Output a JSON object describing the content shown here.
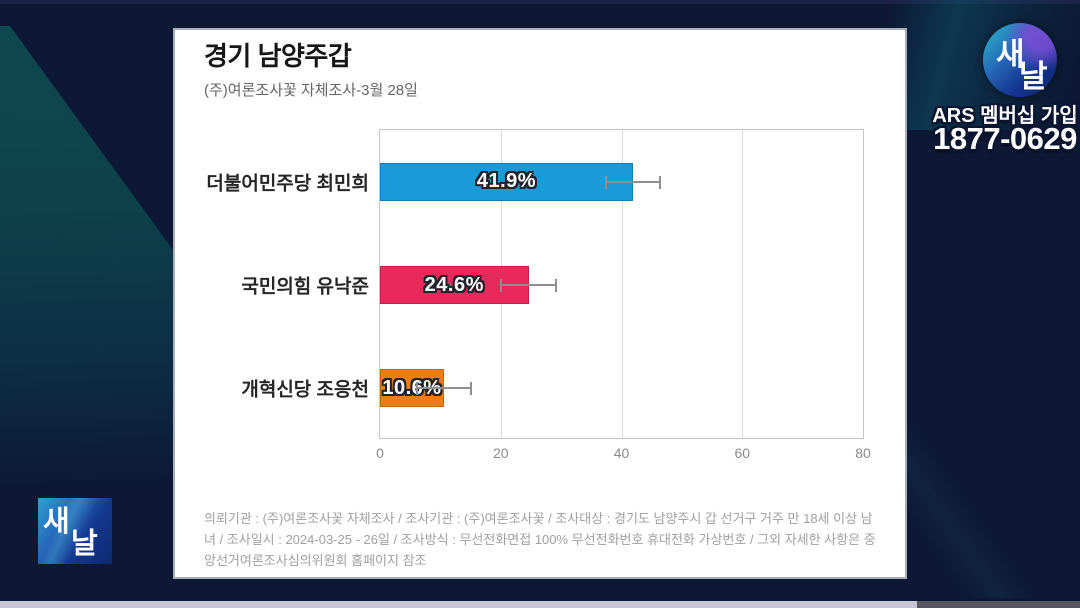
{
  "colors": {
    "background_navy": "#0c1834",
    "background_teal": "#0d434c",
    "card_background": "#ffffff",
    "bar_blue": "#1b9ad8",
    "bar_pink": "#e82a5b",
    "bar_orange": "#ee7d14",
    "progress_played": "#c6c7d2",
    "progress_remaining": "#55565e"
  },
  "chart_data": {
    "type": "bar",
    "orientation": "horizontal",
    "title": "경기 남양주갑",
    "subtitle": "(주)여론조사꽃 자체조사-3월 28일",
    "categories": [
      "더불어민주당 최민희",
      "국민의힘 유낙준",
      "개혁신당 조응천"
    ],
    "values": [
      41.9,
      24.6,
      10.6
    ],
    "value_labels": [
      "41.9%",
      "24.6%",
      "10.6%"
    ],
    "error_margin_pp": 4.7,
    "bar_colors": [
      "#1b9ad8",
      "#e82a5b",
      "#ee7d14"
    ],
    "xlim": [
      0,
      80
    ],
    "x_ticks": [
      0,
      20,
      40,
      60,
      80
    ],
    "grid": "vertical-only",
    "legend": "none"
  },
  "card": {
    "footnote": "의뢰기관 : (주)여론조사꽃 자체조사 / 조사기관 : (주)여론조사꽃 / 조사대상 : 경기도 남양주시 갑 선거구 거주 만 18세 이상 남녀 / 조사일시 : 2024-03-25 - 26일 / 조사방식 : 무선전화면접 100% 무선전화번호 휴대전화 가상번호 / 그외 자세한 사항은 중앙선거여론조사심의위원회 홈페이지 참조"
  },
  "overlay": {
    "station_logo": {
      "char_top": "새",
      "char_bottom": "날"
    },
    "ars_label": "ARS 멤버십 가입",
    "ars_phone": "1877-0629"
  }
}
